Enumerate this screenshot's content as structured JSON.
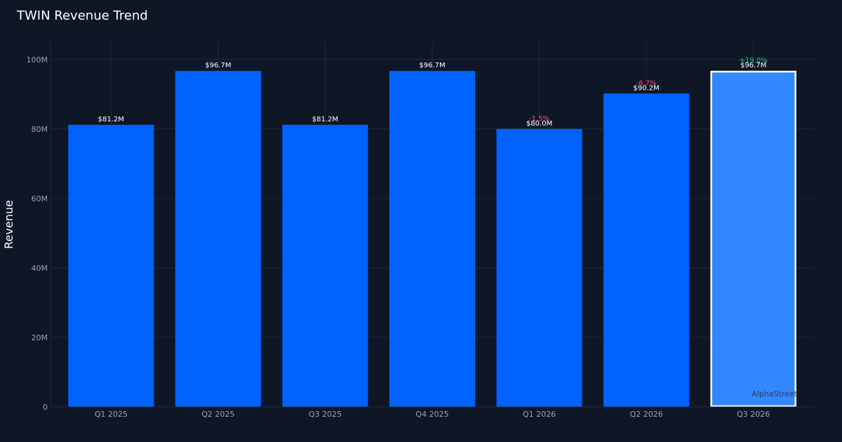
{
  "chart_data": {
    "type": "bar",
    "title": "TWIN Revenue Trend",
    "xlabel": "",
    "ylabel": "Revenue",
    "categories": [
      "Q1 2025",
      "Q2 2025",
      "Q3 2025",
      "Q4 2025",
      "Q1 2026",
      "Q2 2026",
      "Q3 2026"
    ],
    "values": [
      81.2,
      96.7,
      81.2,
      96.7,
      80.0,
      90.2,
      96.7
    ],
    "value_labels": [
      "$81.2M",
      "$96.7M",
      "$81.2M",
      "$96.7M",
      "$80.0M",
      "$90.2M",
      "$96.7M"
    ],
    "change_labels": [
      "",
      "",
      "",
      "",
      "-1.5%",
      "-6.7%",
      "+19.0%"
    ],
    "change_colors": [
      "",
      "",
      "",
      "",
      "#ff4d6d",
      "#ff4d6d",
      "#19c98a"
    ],
    "ylim": [
      0,
      105
    ],
    "yticks": [
      0,
      20,
      40,
      60,
      80,
      100
    ],
    "ytick_labels": [
      "0",
      "20M",
      "40M",
      "60M",
      "80M",
      "100M"
    ],
    "highlight_index": 6,
    "grid": true,
    "colors": {
      "background": "#0f1727",
      "bar": "#0062ff",
      "bar_highlight": "#3388ff",
      "highlight_border": "#ffffff",
      "grid": "#1f2a3c",
      "tick_text": "#9aa3b2",
      "value_text": "#ffffff"
    },
    "watermark": "AlphaStreet"
  }
}
